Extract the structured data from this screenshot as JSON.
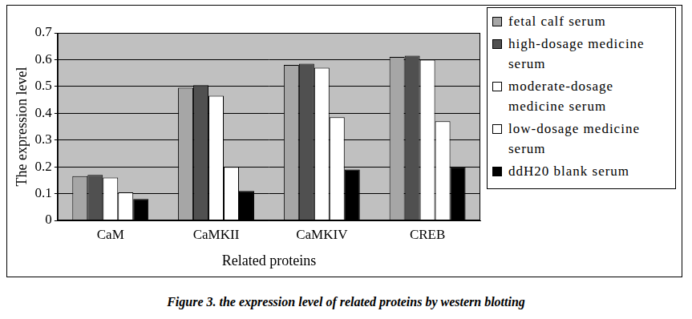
{
  "chart_data": {
    "type": "bar",
    "title": "Figure 3.  the expression level of related proteins by western blotting",
    "x_label": "Related proteins",
    "y_label": "The expression level",
    "categories": [
      "CaM",
      "CaMKII",
      "CaMKIV",
      "CREB"
    ],
    "series": [
      {
        "name": "fetal calf serum",
        "color": "#a6a6a6",
        "values": [
          0.165,
          0.495,
          0.58,
          0.61
        ]
      },
      {
        "name": "high-dosage medicine serum",
        "color": "#505050",
        "values": [
          0.17,
          0.505,
          0.585,
          0.615
        ]
      },
      {
        "name": "moderate-dosage medicine serum",
        "color": "#ffffff",
        "values": [
          0.16,
          0.465,
          0.57,
          0.6
        ]
      },
      {
        "name": "low-dosage medicine serum",
        "color": "#ffffff",
        "values": [
          0.105,
          0.2,
          0.385,
          0.37
        ]
      },
      {
        "name": "ddH20 blank serum",
        "color": "#000000",
        "values": [
          0.08,
          0.11,
          0.19,
          0.2
        ]
      }
    ],
    "ylim": [
      0,
      0.7
    ],
    "yticks": [
      0,
      0.1,
      0.2,
      0.3,
      0.4,
      0.5,
      0.6,
      0.7
    ],
    "grid": true,
    "legend": "right"
  }
}
